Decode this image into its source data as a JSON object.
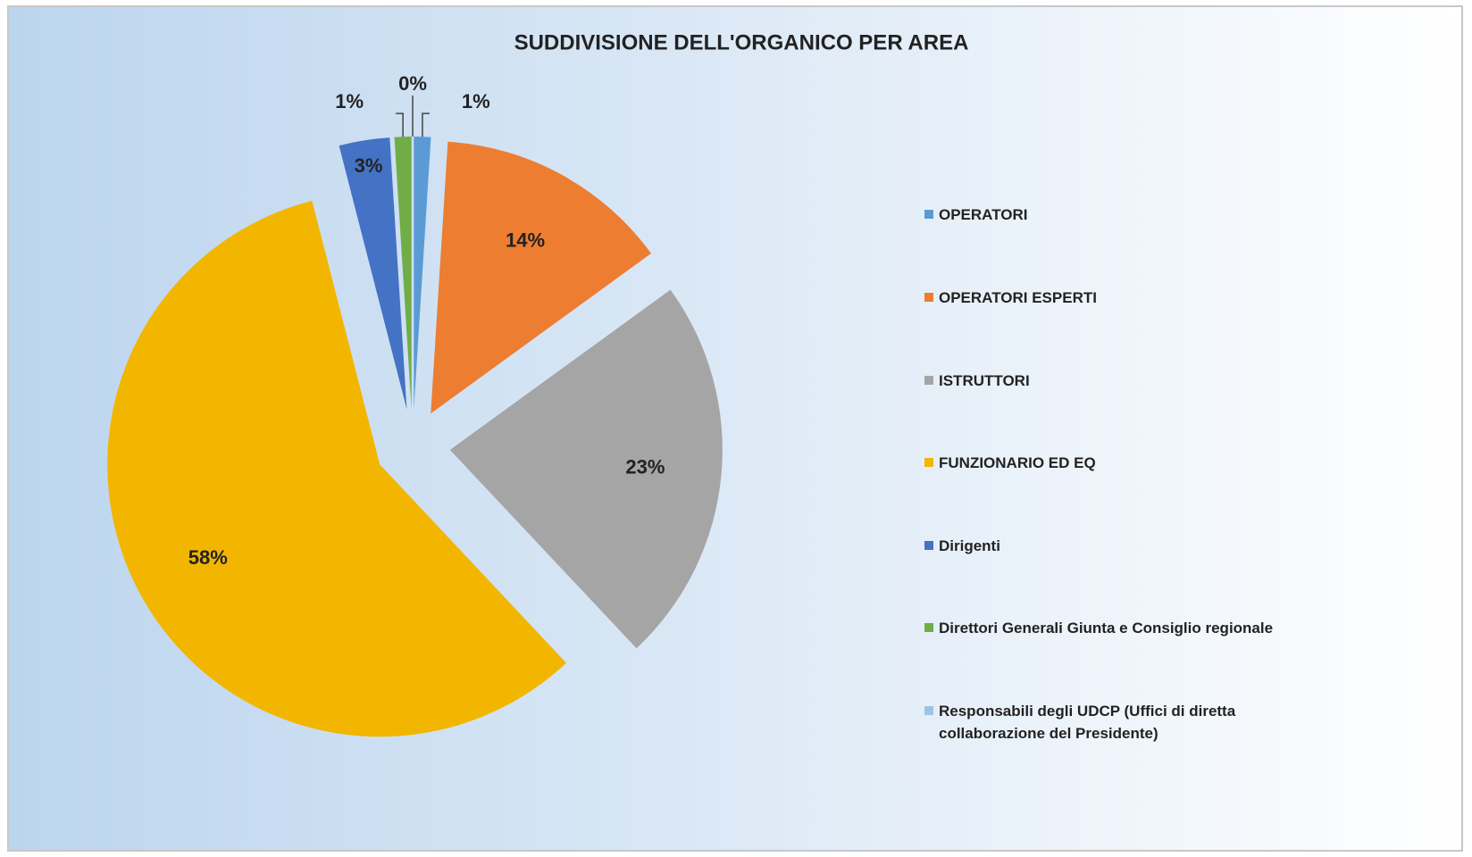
{
  "chart_data": {
    "type": "pie",
    "title": "SUDDIVISIONE DELL'ORGANICO PER AREA",
    "categories": [
      "OPERATORI",
      "OPERATORI ESPERTI",
      "ISTRUTTORI",
      "FUNZIONARIO ED EQ",
      "Dirigenti",
      "Direttori Generali Giunta e Consiglio regionale",
      "Responsabili degli UDCP (Uffici di diretta collaborazione del Presidente)"
    ],
    "values": [
      1,
      14,
      23,
      58,
      3,
      1,
      0
    ],
    "value_labels": [
      "1%",
      "14%",
      "23%",
      "58%",
      "3%",
      "1%",
      "0%"
    ],
    "colors": [
      "#5b9bd5",
      "#ed7d31",
      "#a5a5a5",
      "#f2b600",
      "#4472c4",
      "#70ad47",
      "#9dc3e6"
    ],
    "legend": "right"
  }
}
